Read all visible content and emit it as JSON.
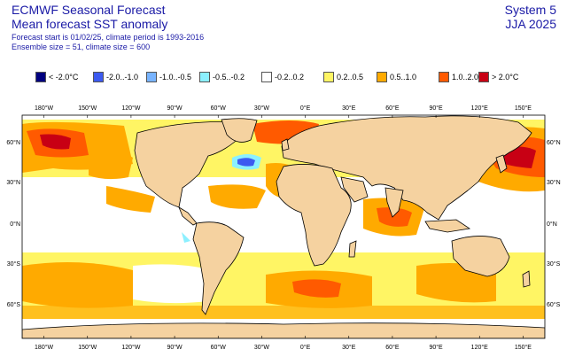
{
  "header": {
    "title": "ECMWF Seasonal Forecast",
    "subtitle": "Mean forecast SST anomaly",
    "info_line1": "Forecast start is 01/02/25, climate period is 1993-2016",
    "info_line2": "Ensemble size = 51, climate size = 600",
    "system": "System 5",
    "season": "JJA 2025"
  },
  "legend": [
    {
      "label": "< -2.0°C",
      "color": "#00007f"
    },
    {
      "label": "-2.0..-1.0",
      "color": "#3c5af0"
    },
    {
      "label": "-1.0..-0.5",
      "color": "#78b4ff"
    },
    {
      "label": "-0.5..-0.2",
      "color": "#8cf0ff"
    },
    {
      "label": "-0.2..0.2",
      "color": "#ffffff"
    },
    {
      "label": "0.2..0.5",
      "color": "#fff564"
    },
    {
      "label": "0.5..1.0",
      "color": "#ffaa00"
    },
    {
      "label": "1.0..2.0",
      "color": "#ff5a00"
    },
    {
      "label": "> 2.0°C",
      "color": "#c80014"
    }
  ],
  "map": {
    "land_color": "#f5d2a0",
    "lon_labels": [
      "180°W",
      "150°W",
      "120°W",
      "90°W",
      "60°W",
      "30°W",
      "0°E",
      "30°E",
      "60°E",
      "90°E",
      "120°E",
      "150°E"
    ],
    "lat_labels": [
      "60°N",
      "30°N",
      "0°N",
      "30°S",
      "60°S"
    ]
  }
}
